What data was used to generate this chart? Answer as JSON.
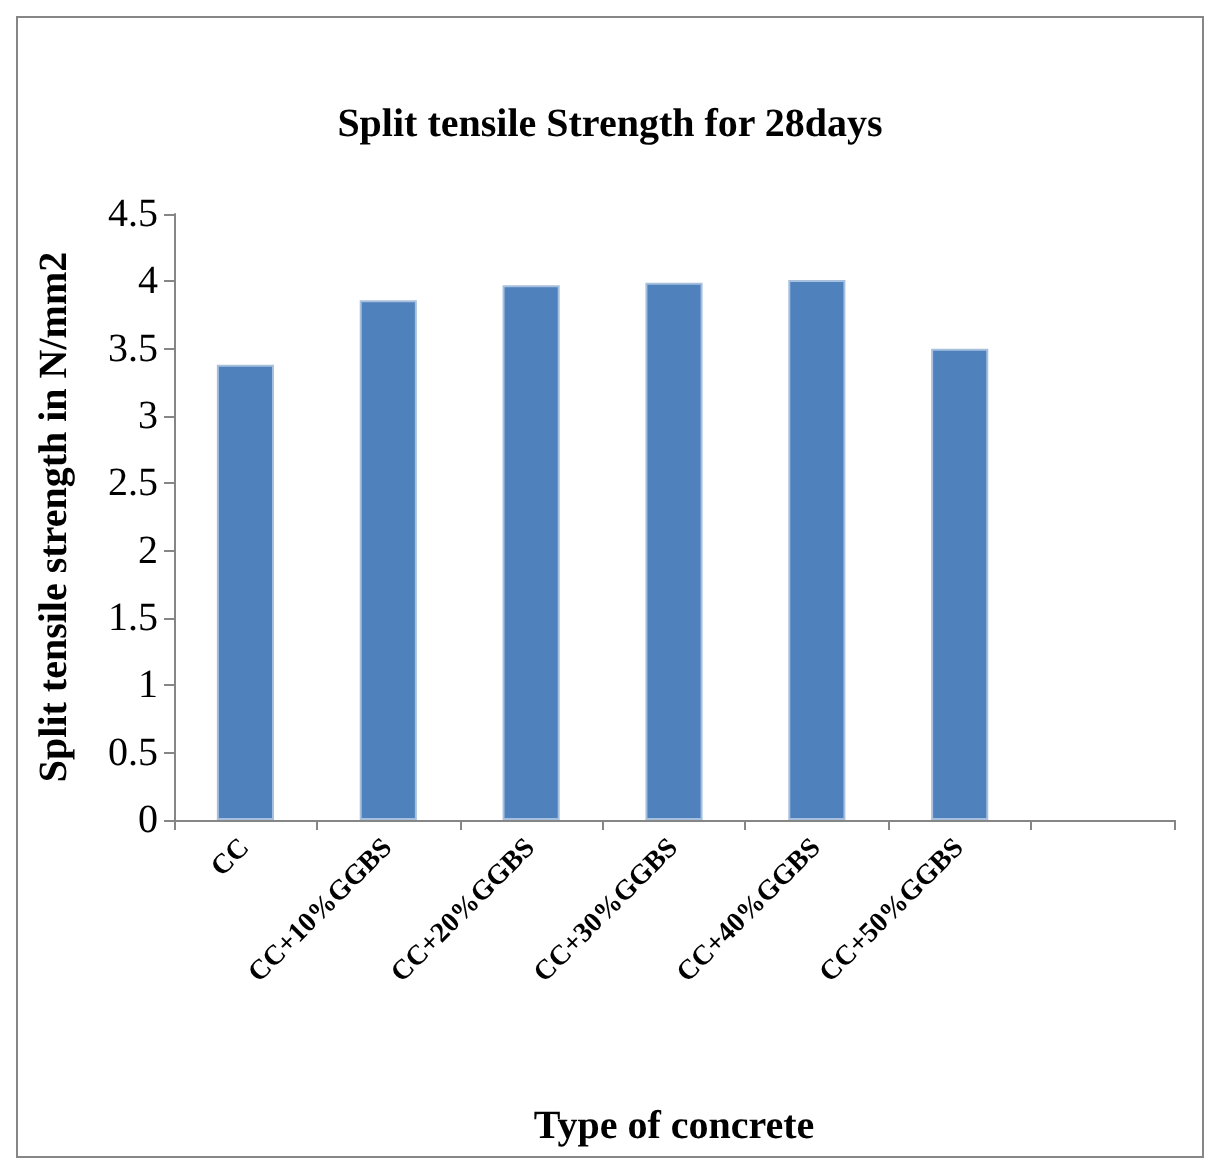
{
  "chart_data": {
    "type": "bar",
    "title": "Split tensile Strength for 28days",
    "xlabel": "Type of concrete",
    "ylabel": "Split tensile strength in N/mm2",
    "categories": [
      "CC",
      "CC+10%GGBS",
      "CC+20%GGBS",
      "CC+30%GGBS",
      "CC+40%GGBS",
      "CC+50%GGBS",
      null
    ],
    "values": [
      3.38,
      3.86,
      3.97,
      3.99,
      4.01,
      3.5,
      null
    ],
    "color": "#4f81bd",
    "ylim": [
      0,
      4.5
    ],
    "yticks": [
      0,
      0.5,
      1,
      1.5,
      2,
      2.5,
      3,
      3.5,
      4,
      4.5
    ],
    "grid": false
  }
}
